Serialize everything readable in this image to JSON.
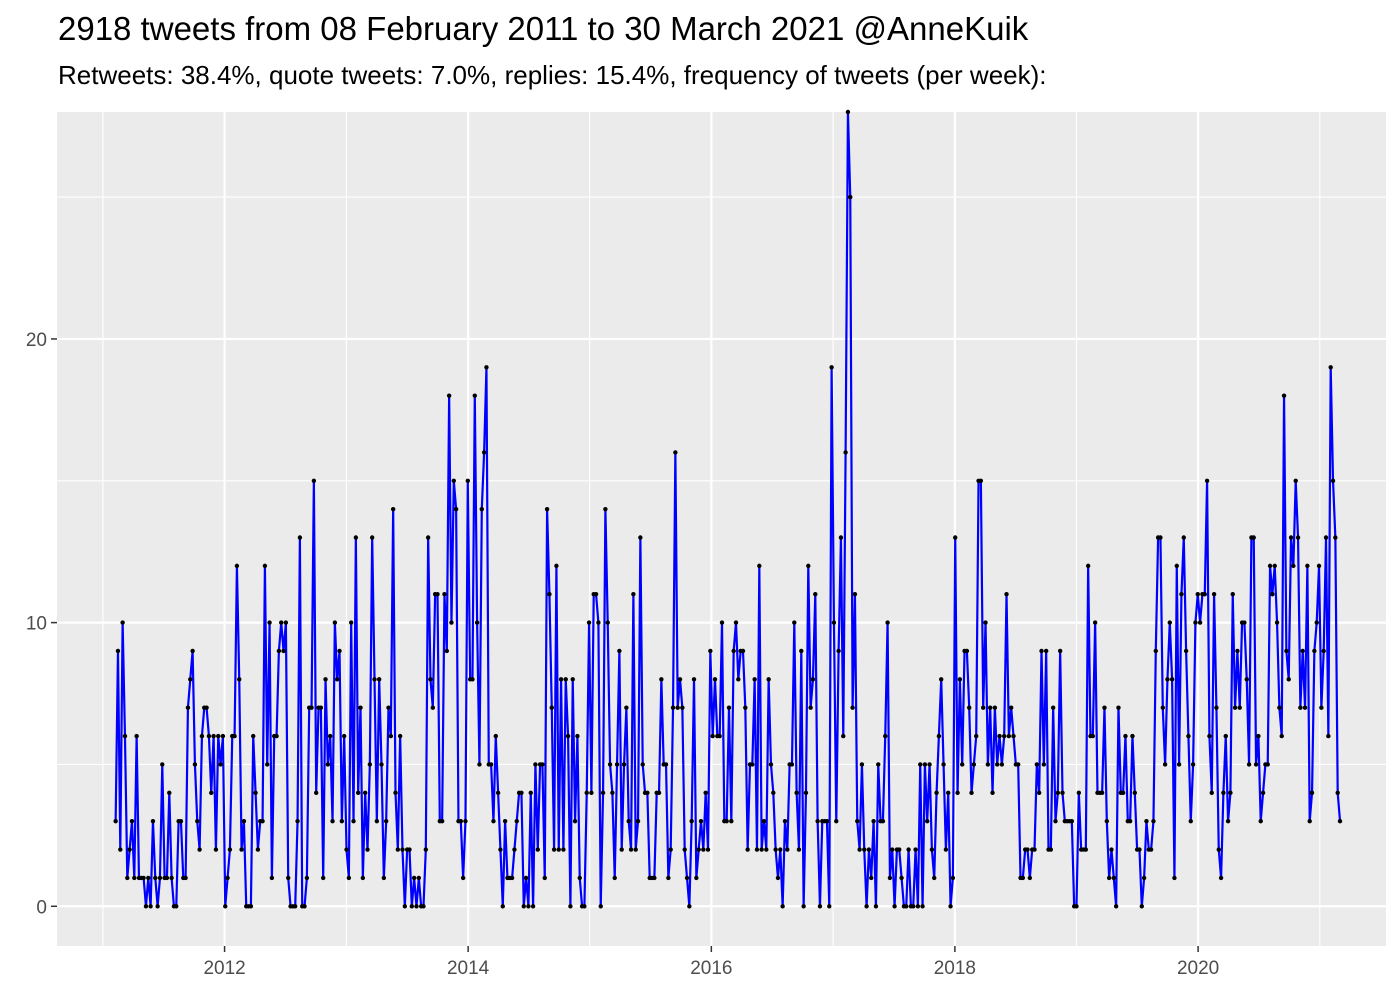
{
  "title": "2918 tweets from 08 February 2011 to 30 March 2021 @AnneKuik",
  "subtitle": "Retweets: 38.4%, quote tweets: 7.0%, replies: 15.4%, frequency of tweets (per week):",
  "colors": {
    "line": "#0000ff",
    "point": "#000000",
    "panel": "#ebebeb",
    "grid": "#ffffff"
  },
  "chart_data": {
    "type": "line",
    "title": "2918 tweets from 08 February 2011 to 30 March 2021 @AnneKuik",
    "subtitle": "Retweets: 38.4%, quote tweets: 7.0%, replies: 15.4%, frequency of tweets (per week):",
    "xlabel": "",
    "ylabel": "",
    "x_range": [
      "2010-08-16",
      "2021-07-18"
    ],
    "ylim": [
      -1.4,
      28.0
    ],
    "grid": true,
    "x_ticks": [
      {
        "value": "2012-01-01",
        "label": "2012"
      },
      {
        "value": "2014-01-01",
        "label": "2014"
      },
      {
        "value": "2016-01-01",
        "label": "2016"
      },
      {
        "value": "2018-01-01",
        "label": "2018"
      },
      {
        "value": "2020-01-01",
        "label": "2020"
      }
    ],
    "y_ticks": [
      0,
      10,
      20
    ],
    "series_start": "2011-02-08",
    "step_days": 7,
    "series": [
      {
        "values": [
          3,
          9,
          2,
          10,
          6,
          1,
          2,
          3,
          1,
          6,
          1,
          1,
          1,
          0,
          1,
          0,
          3,
          1,
          0,
          1,
          5,
          1,
          1,
          4,
          1,
          0,
          0,
          3,
          3,
          1,
          1,
          7,
          8,
          9,
          5,
          3,
          2,
          6,
          7,
          7,
          6,
          4,
          6,
          2,
          6,
          5,
          6,
          0,
          1,
          2,
          6,
          6,
          12,
          8,
          2,
          3,
          0,
          0,
          0,
          6,
          4,
          2,
          3,
          3,
          12,
          5,
          10,
          1,
          6,
          6,
          9,
          10,
          9,
          10,
          1,
          0,
          0,
          0,
          3,
          13,
          0,
          0,
          1,
          7,
          7,
          15,
          4,
          7,
          7,
          1,
          8,
          5,
          6,
          3,
          10,
          8,
          9,
          3,
          6,
          2,
          1,
          10,
          3,
          13,
          4,
          7,
          1,
          4,
          2,
          5,
          13,
          8,
          3,
          8,
          5,
          1,
          3,
          7,
          6,
          14,
          4,
          2,
          6,
          2,
          0,
          2,
          2,
          0,
          1,
          0,
          1,
          0,
          0,
          2,
          13,
          8,
          7,
          11,
          11,
          3,
          3,
          11,
          9,
          18,
          10,
          15,
          14,
          3,
          3,
          1,
          3,
          15,
          8,
          8,
          18,
          10,
          5,
          14,
          16,
          19,
          5,
          5,
          3,
          6,
          4,
          2,
          0,
          3,
          1,
          1,
          1,
          2,
          3,
          4,
          4,
          0,
          1,
          0,
          4,
          0,
          5,
          2,
          5,
          5,
          1,
          14,
          11,
          7,
          2,
          12,
          2,
          8,
          2,
          8,
          6,
          0,
          8,
          3,
          6,
          1,
          0,
          0,
          4,
          10,
          4,
          11,
          11,
          10,
          0,
          4,
          14,
          10,
          5,
          4,
          1,
          5,
          9,
          2,
          5,
          7,
          3,
          2,
          11,
          2,
          3,
          13,
          5,
          4,
          4,
          1,
          1,
          1,
          4,
          4,
          8,
          5,
          5,
          1,
          2,
          7,
          16,
          7,
          8,
          7,
          2,
          1,
          0,
          3,
          8,
          1,
          2,
          3,
          2,
          4,
          2,
          9,
          6,
          8,
          6,
          6,
          10,
          3,
          3,
          7,
          3,
          9,
          10,
          8,
          9,
          9,
          7,
          2,
          5,
          5,
          8,
          2,
          12,
          2,
          3,
          2,
          8,
          5,
          4,
          2,
          1,
          2,
          0,
          3,
          2,
          5,
          5,
          10,
          4,
          2,
          9,
          0,
          4,
          12,
          7,
          8,
          11,
          3,
          0,
          3,
          3,
          3,
          0,
          19,
          10,
          3,
          9,
          13,
          6,
          16,
          28,
          25,
          7,
          11,
          3,
          2,
          5,
          2,
          0,
          2,
          1,
          3,
          0,
          5,
          3,
          3,
          6,
          10,
          1,
          2,
          0,
          2,
          2,
          1,
          0,
          0,
          2,
          0,
          0,
          2,
          0,
          5,
          0,
          5,
          3,
          5,
          2,
          1,
          4,
          6,
          8,
          5,
          2,
          4,
          0,
          1,
          13,
          4,
          8,
          5,
          9,
          9,
          7,
          4,
          5,
          6,
          15,
          15,
          7,
          10,
          5,
          7,
          4,
          7,
          5,
          6,
          5,
          6,
          11,
          6,
          7,
          6,
          5,
          5,
          1,
          1,
          2,
          2,
          1,
          2,
          2,
          5,
          4,
          9,
          5,
          9,
          2,
          2,
          7,
          3,
          4,
          9,
          4,
          3,
          3,
          3,
          3,
          0,
          0,
          4,
          2,
          2,
          2,
          12,
          6,
          6,
          10,
          4,
          4,
          4,
          7,
          3,
          1,
          2,
          1,
          0,
          7,
          4,
          4,
          6,
          3,
          3,
          6,
          4,
          2,
          2,
          0,
          1,
          3,
          2,
          2,
          3,
          9,
          13,
          13,
          7,
          5,
          8,
          10,
          8,
          1,
          12,
          5,
          11,
          13,
          9,
          6,
          3,
          5,
          10,
          11,
          10,
          11,
          11,
          15,
          6,
          4,
          11,
          7,
          2,
          1,
          4,
          6,
          3,
          4,
          11,
          7,
          9,
          7,
          10,
          10,
          8,
          5,
          13,
          13,
          5,
          6,
          3,
          4,
          5,
          5,
          12,
          11,
          12,
          10,
          7,
          6,
          18,
          9,
          8,
          13,
          12,
          15,
          13,
          7,
          9,
          7,
          12,
          3,
          4,
          9,
          10,
          12,
          7,
          9,
          13,
          6,
          19,
          15,
          13,
          4,
          3
        ]
      }
    ]
  }
}
